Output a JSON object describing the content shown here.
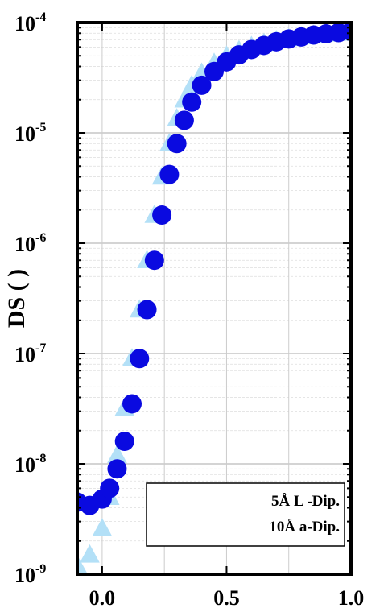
{
  "chart_data": {
    "type": "scatter",
    "title": "",
    "xlabel": "",
    "ylabel": "DS ( )",
    "xlim": [
      -0.1,
      1.0
    ],
    "ylim": [
      1e-09,
      0.0001
    ],
    "yscale": "log",
    "grid": true,
    "legend_position": "bottom-right",
    "x_ticks": [
      {
        "value": 0.0,
        "label": "0.0"
      },
      {
        "value": 0.5,
        "label": "0.5"
      },
      {
        "value": 1.0,
        "label": "1.0"
      }
    ],
    "y_ticks": [
      {
        "value": 1e-09,
        "base": "10",
        "exp": "-9"
      },
      {
        "value": 1e-08,
        "base": "10",
        "exp": "-8"
      },
      {
        "value": 1e-07,
        "base": "10",
        "exp": "-7"
      },
      {
        "value": 1e-06,
        "base": "10",
        "exp": "-6"
      },
      {
        "value": 1e-05,
        "base": "10",
        "exp": "-5"
      },
      {
        "value": 0.0001,
        "base": "10",
        "exp": "-4"
      }
    ],
    "series": [
      {
        "name": "10Å La-Dip.",
        "legend_text": "10Å  a-Dip.",
        "color": "#b3e0f7",
        "marker": "triangle",
        "x": [
          -0.2,
          -0.15,
          -0.1,
          -0.05,
          0.0,
          0.03,
          0.06,
          0.09,
          0.12,
          0.15,
          0.18,
          0.21,
          0.24,
          0.27,
          0.3,
          0.33,
          0.36,
          0.4,
          0.45,
          0.5,
          0.55,
          0.6,
          0.65,
          0.7,
          0.75,
          0.8,
          0.85,
          0.9,
          0.95,
          1.0
        ],
        "y": [
          1e-09,
          1.05e-09,
          1.2e-09,
          1.5e-09,
          2.6e-09,
          5e-09,
          1.2e-08,
          3.2e-08,
          9e-08,
          2.5e-07,
          7e-07,
          1.8e-06,
          4e-06,
          8e-06,
          1.35e-05,
          2e-05,
          2.7e-05,
          3.5e-05,
          4.3e-05,
          5e-05,
          5.6e-05,
          6.1e-05,
          6.5e-05,
          6.9e-05,
          7.2e-05,
          7.5e-05,
          7.7e-05,
          7.9e-05,
          8.05e-05,
          8.2e-05
        ]
      },
      {
        "name": "5Å La-Dip.",
        "legend_text": "5Å L  -Dip.",
        "color": "#0a0ae0",
        "marker": "circle",
        "x": [
          -0.2,
          -0.15,
          -0.1,
          -0.05,
          0.0,
          0.03,
          0.06,
          0.09,
          0.12,
          0.15,
          0.18,
          0.21,
          0.24,
          0.27,
          0.3,
          0.33,
          0.36,
          0.4,
          0.45,
          0.5,
          0.55,
          0.6,
          0.65,
          0.7,
          0.75,
          0.8,
          0.85,
          0.9,
          0.95,
          1.0
        ],
        "y": [
          4e-09,
          4.2e-09,
          4.5e-09,
          4.2e-09,
          4.8e-09,
          6e-09,
          9e-09,
          1.6e-08,
          3.5e-08,
          9e-08,
          2.5e-07,
          7e-07,
          1.8e-06,
          4.2e-06,
          8e-06,
          1.3e-05,
          1.9e-05,
          2.7e-05,
          3.6e-05,
          4.4e-05,
          5.1e-05,
          5.7e-05,
          6.2e-05,
          6.7e-05,
          7.1e-05,
          7.4e-05,
          7.7e-05,
          7.9e-05,
          8.1e-05,
          8.3e-05
        ]
      }
    ]
  }
}
